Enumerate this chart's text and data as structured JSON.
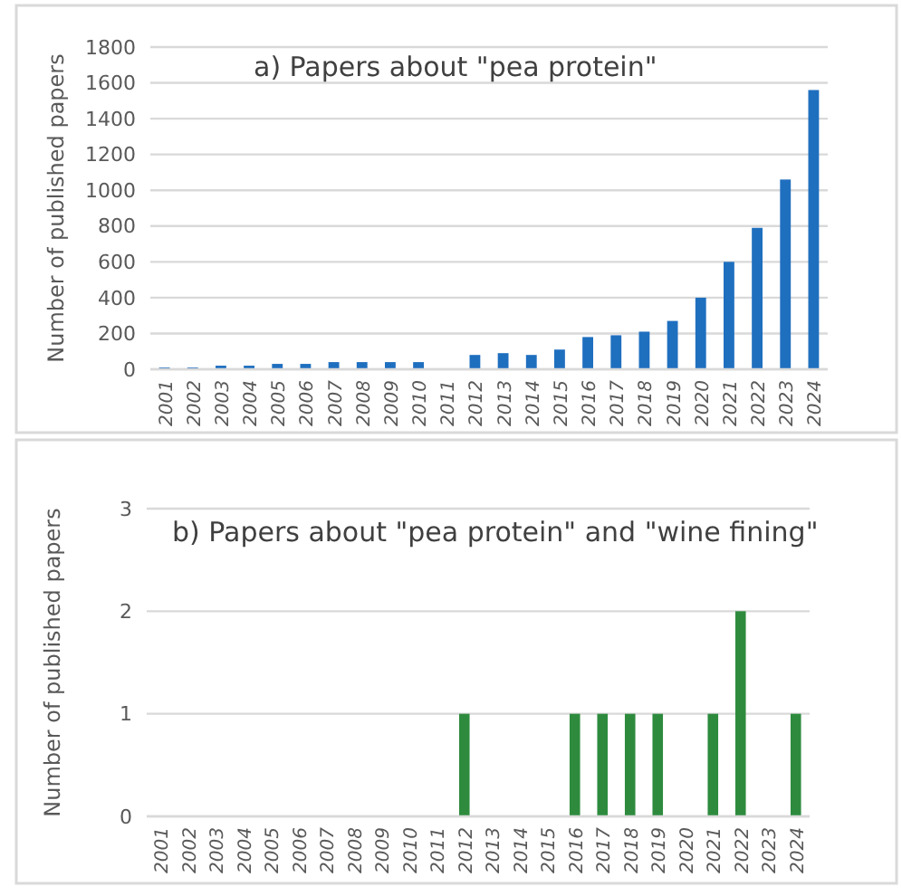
{
  "chart_data": [
    {
      "type": "bar",
      "title": "a) Papers about \"pea protein\"",
      "ylabel": "Number of published papers",
      "categories": [
        "2001",
        "2002",
        "2003",
        "2004",
        "2005",
        "2006",
        "2007",
        "2008",
        "2009",
        "2010",
        "2011",
        "2012",
        "2013",
        "2014",
        "2015",
        "2016",
        "2017",
        "2018",
        "2019",
        "2020",
        "2021",
        "2022",
        "2023",
        "2024"
      ],
      "series": [
        {
          "color": "#1f6fbf",
          "values": [
            10,
            10,
            20,
            20,
            30,
            30,
            40,
            40,
            40,
            40,
            0,
            80,
            90,
            80,
            110,
            180,
            190,
            210,
            270,
            400,
            600,
            790,
            1060,
            1560
          ]
        }
      ],
      "ylim": [
        0,
        1800
      ],
      "yticks": [
        0,
        200,
        400,
        600,
        800,
        1000,
        1200,
        1400,
        1600,
        1800
      ],
      "grid": "y"
    },
    {
      "type": "bar",
      "title": "b) Papers about \"pea protein\" and \"wine fining\"",
      "ylabel": "Number of published papers",
      "categories": [
        "2001",
        "2002",
        "2003",
        "2004",
        "2005",
        "2006",
        "2007",
        "2008",
        "2009",
        "2010",
        "2011",
        "2012",
        "2013",
        "2014",
        "2015",
        "2016",
        "2017",
        "2018",
        "2019",
        "2020",
        "2021",
        "2022",
        "2023",
        "2024"
      ],
      "series": [
        {
          "color": "#2e8b3e",
          "values": [
            0,
            0,
            0,
            0,
            0,
            0,
            0,
            0,
            0,
            0,
            0,
            1,
            0,
            0,
            0,
            1,
            1,
            1,
            1,
            0,
            1,
            2,
            0,
            1
          ]
        }
      ],
      "ylim": [
        0,
        3
      ],
      "yticks": [
        0,
        1,
        2,
        3
      ],
      "grid": "y"
    }
  ]
}
